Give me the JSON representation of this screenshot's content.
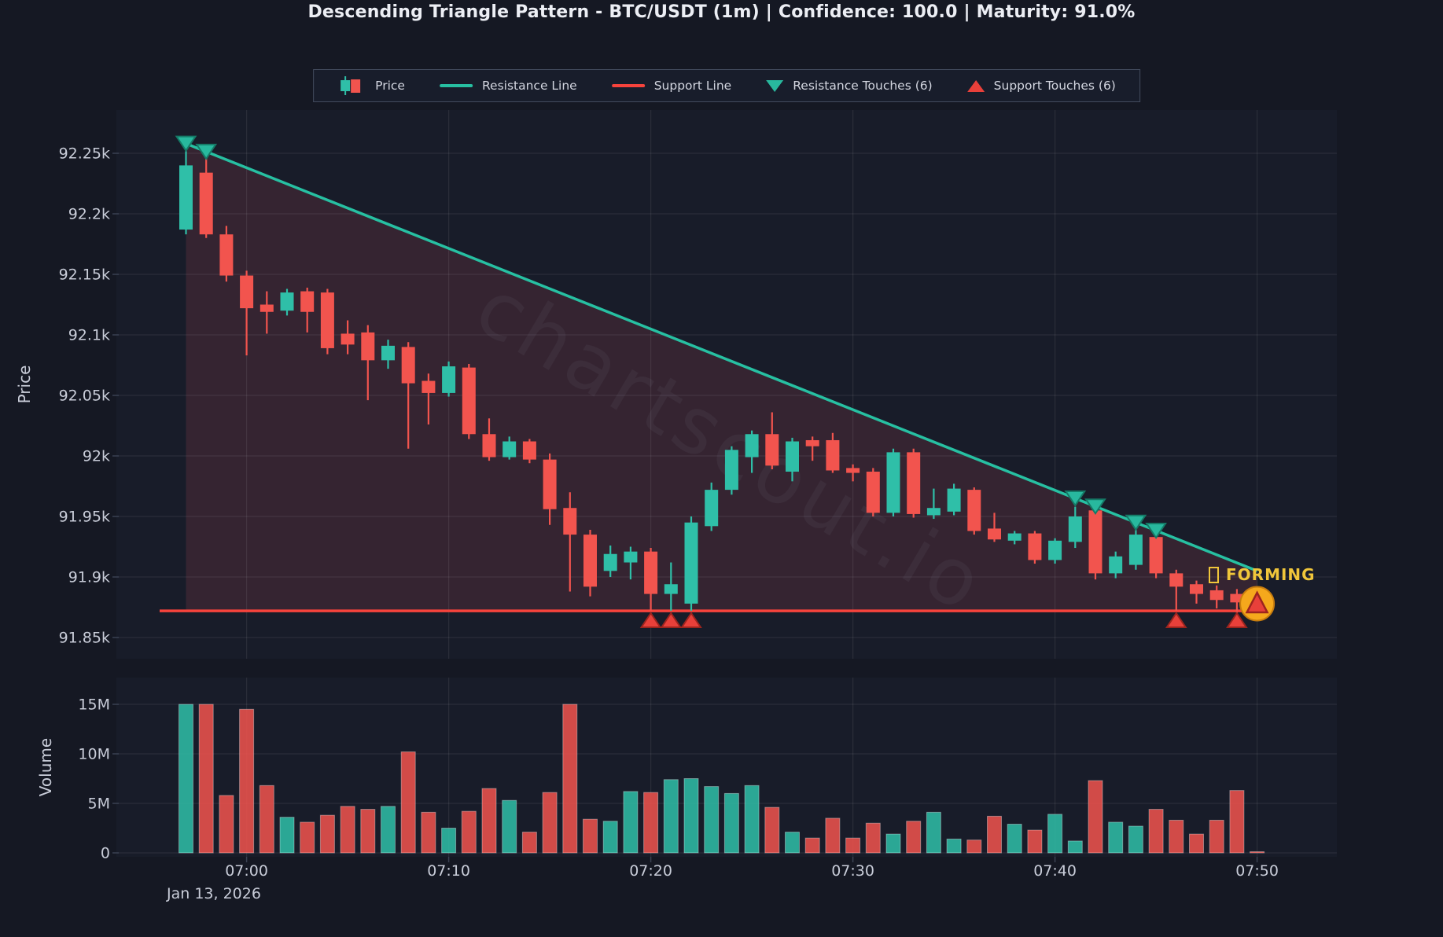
{
  "title": "Descending Triangle Pattern - BTC/USDT (1m) | Confidence: 100.0 | Maturity: 91.0%",
  "watermark": "chartscout.io",
  "status_label": "FORMING",
  "legend": {
    "items": [
      {
        "icon": "candlestick-icon",
        "label": "Price"
      },
      {
        "icon": "resistance-line-icon",
        "label": "Resistance Line"
      },
      {
        "icon": "support-line-icon",
        "label": "Support Line"
      },
      {
        "icon": "resistance-touch-icon",
        "label": "Resistance Touches (6)"
      },
      {
        "icon": "support-touch-icon",
        "label": "Support Touches (6)"
      }
    ]
  },
  "axes": {
    "price_axis_title": "Price",
    "volume_axis_title": "Volume",
    "date_label": "Jan 13, 2026",
    "price_ticks": [
      {
        "label": "92.25k",
        "value": 92250
      },
      {
        "label": "92.2k",
        "value": 92200
      },
      {
        "label": "92.15k",
        "value": 92150
      },
      {
        "label": "92.1k",
        "value": 92100
      },
      {
        "label": "92.05k",
        "value": 92050
      },
      {
        "label": "92k",
        "value": 92000
      },
      {
        "label": "91.95k",
        "value": 91950
      },
      {
        "label": "91.9k",
        "value": 91900
      },
      {
        "label": "91.85k",
        "value": 91850
      }
    ],
    "volume_ticks": [
      {
        "label": "15M",
        "value": 15
      },
      {
        "label": "10M",
        "value": 10
      },
      {
        "label": "5M",
        "value": 5
      },
      {
        "label": "0",
        "value": 0
      }
    ],
    "time_ticks": [
      "07:00",
      "07:10",
      "07:20",
      "07:30",
      "07:40",
      "07:50"
    ]
  },
  "colors": {
    "background": "#151823",
    "panel": "#181c29",
    "grid": "rgba(255,255,255,0.08)",
    "tick": "#3a4152",
    "text": "#c9cdd9",
    "up": "#2fbfa8",
    "down": "#f2544e",
    "resistance": "#27c0a2",
    "support": "#f6433c",
    "pattern_fill": "rgba(236,86,98,0.14)",
    "marker_up_fill": "#e8403a",
    "marker_up_stroke": "#9c241e",
    "marker_down_fill": "#28b89e",
    "marker_down_stroke": "#157a67",
    "highlight_circle": "#f5a81c",
    "highlight_circle_stroke": "#c87d0e",
    "accent_yellow": "#f0c63a",
    "watermark_color": "rgba(205,210,230,0.05)"
  },
  "chart_data": {
    "type": "candlestick+volume",
    "symbol": "BTC/USDT",
    "interval": "1m",
    "volume_unit": "M",
    "price_axis_range": [
      91832,
      92286
    ],
    "volume_axis_range": [
      0,
      17.5
    ],
    "columns": [
      "time",
      "open",
      "high",
      "low",
      "close",
      "volume_m"
    ],
    "candles": [
      [
        "06:57",
        92187,
        92258,
        92183,
        92240,
        15.0
      ],
      [
        "06:58",
        92234,
        92252,
        92180,
        92183,
        15.0
      ],
      [
        "06:59",
        92183,
        92190,
        92144,
        92149,
        5.8
      ],
      [
        "07:00",
        92149,
        92153,
        92083,
        92122,
        14.5
      ],
      [
        "07:01",
        92125,
        92136,
        92101,
        92119,
        6.8
      ],
      [
        "07:02",
        92120,
        92138,
        92116,
        92135,
        3.6
      ],
      [
        "07:03",
        92136,
        92139,
        92102,
        92119,
        3.1
      ],
      [
        "07:04",
        92135,
        92138,
        92084,
        92089,
        3.8
      ],
      [
        "07:05",
        92101,
        92112,
        92084,
        92092,
        4.7
      ],
      [
        "07:06",
        92102,
        92108,
        92046,
        92079,
        4.4
      ],
      [
        "07:07",
        92079,
        92096,
        92072,
        92091,
        4.7
      ],
      [
        "07:08",
        92090,
        92094,
        92006,
        92060,
        10.2
      ],
      [
        "07:09",
        92062,
        92068,
        92026,
        92052,
        4.1
      ],
      [
        "07:10",
        92052,
        92078,
        92049,
        92074,
        2.5
      ],
      [
        "07:11",
        92073,
        92076,
        92014,
        92018,
        4.2
      ],
      [
        "07:12",
        92018,
        92031,
        91996,
        91999,
        6.5
      ],
      [
        "07:13",
        91999,
        92016,
        91997,
        92012,
        5.3
      ],
      [
        "07:14",
        92012,
        92014,
        91994,
        91997,
        2.1
      ],
      [
        "07:15",
        91997,
        92002,
        91943,
        91956,
        6.1
      ],
      [
        "07:16",
        91957,
        91970,
        91888,
        91935,
        15.0
      ],
      [
        "07:17",
        91935,
        91939,
        91884,
        91892,
        3.4
      ],
      [
        "07:18",
        91905,
        91926,
        91900,
        91919,
        3.2
      ],
      [
        "07:19",
        91912,
        91925,
        91898,
        91921,
        6.2
      ],
      [
        "07:20",
        91921,
        91924,
        91872,
        91886,
        6.1
      ],
      [
        "07:21",
        91886,
        91912,
        91872,
        91894,
        7.4
      ],
      [
        "07:22",
        91878,
        91950,
        91872,
        91945,
        7.5
      ],
      [
        "07:23",
        91942,
        91978,
        91938,
        91972,
        6.7
      ],
      [
        "07:24",
        91972,
        92008,
        91968,
        92005,
        6.0
      ],
      [
        "07:25",
        91999,
        92021,
        91986,
        92018,
        6.8
      ],
      [
        "07:26",
        92018,
        92036,
        91989,
        91992,
        4.6
      ],
      [
        "07:27",
        91987,
        92015,
        91979,
        92012,
        2.1
      ],
      [
        "07:28",
        92013,
        92016,
        91996,
        92008,
        1.5
      ],
      [
        "07:29",
        92013,
        92019,
        91986,
        91988,
        3.5
      ],
      [
        "07:30",
        91990,
        91993,
        91979,
        91986,
        1.5
      ],
      [
        "07:31",
        91987,
        91990,
        91950,
        91953,
        3.0
      ],
      [
        "07:32",
        91953,
        92006,
        91950,
        92003,
        1.9
      ],
      [
        "07:33",
        92003,
        92006,
        91949,
        91952,
        3.2
      ],
      [
        "07:34",
        91951,
        91973,
        91948,
        91957,
        4.1
      ],
      [
        "07:35",
        91954,
        91977,
        91951,
        91973,
        1.4
      ],
      [
        "07:36",
        91972,
        91974,
        91935,
        91938,
        1.3
      ],
      [
        "07:37",
        91940,
        91953,
        91929,
        91931,
        3.7
      ],
      [
        "07:38",
        91930,
        91938,
        91927,
        91936,
        2.9
      ],
      [
        "07:39",
        91936,
        91938,
        91911,
        91914,
        2.3
      ],
      [
        "07:40",
        91914,
        91932,
        91911,
        91930,
        3.9
      ],
      [
        "07:41",
        91929,
        91958,
        91924,
        91950,
        1.2
      ],
      [
        "07:42",
        91955,
        91959,
        91898,
        91903,
        7.3
      ],
      [
        "07:43",
        91903,
        91921,
        91899,
        91917,
        3.1
      ],
      [
        "07:44",
        91910,
        91944,
        91906,
        91935,
        2.7
      ],
      [
        "07:45",
        91933,
        91938,
        91899,
        91903,
        4.4
      ],
      [
        "07:46",
        91903,
        91906,
        91872,
        91892,
        3.3
      ],
      [
        "07:47",
        91894,
        91897,
        91878,
        91886,
        1.9
      ],
      [
        "07:48",
        91889,
        91893,
        91874,
        91881,
        3.3
      ],
      [
        "07:49",
        91886,
        91890,
        91870,
        91879,
        6.3
      ],
      [
        "07:50",
        91882,
        91885,
        91868,
        91874,
        0.12
      ]
    ],
    "resistance_line": {
      "start_time": "06:57",
      "start_price": 92258,
      "end_time": "07:50",
      "end_price": 91905
    },
    "support_line": {
      "price": 91872
    },
    "resistance_touches": [
      "06:57",
      "06:58",
      "07:41",
      "07:42",
      "07:44",
      "07:45"
    ],
    "support_touches": [
      "07:20",
      "07:21",
      "07:22",
      "07:46",
      "07:49",
      "07:50"
    ],
    "highlighted_touch": "07:50",
    "annotation": {
      "text": "FORMING",
      "time": "07:50",
      "price": 91898
    }
  }
}
